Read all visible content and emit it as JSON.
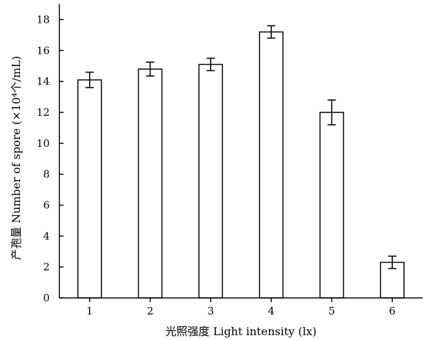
{
  "chart_data": {
    "type": "bar",
    "categories": [
      "1",
      "2",
      "3",
      "4",
      "5",
      "6"
    ],
    "values": [
      14.1,
      14.8,
      15.1,
      17.2,
      12.0,
      2.3
    ],
    "errors": [
      0.5,
      0.45,
      0.4,
      0.4,
      0.8,
      0.4
    ],
    "ylim": [
      0,
      19
    ],
    "yticks": [
      0,
      2,
      4,
      6,
      8,
      10,
      12,
      14,
      16,
      18
    ],
    "xlabel": "光照强度 Light intensity (lx)",
    "ylabel": "产孢量 Number of spore (×10⁴个/mL)",
    "grid": false,
    "bar_fill": "#ffffff",
    "bar_stroke": "#000000"
  }
}
